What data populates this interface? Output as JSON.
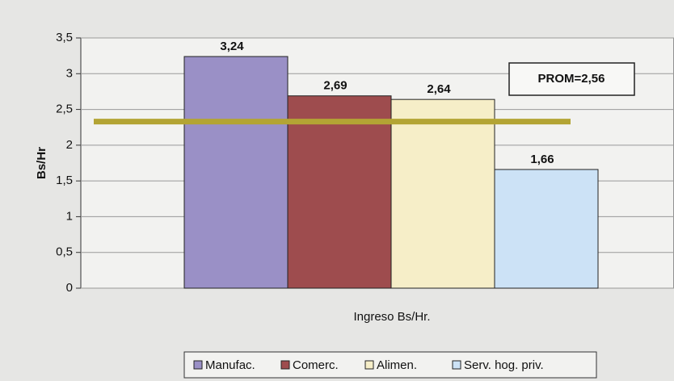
{
  "chart_data": {
    "type": "bar",
    "categories": [
      "Ingreso Bs/Hr."
    ],
    "y_label": "Bs/Hr",
    "series": [
      {
        "name": "Manufac.",
        "color": "#9a90c6",
        "values": [
          3.24
        ],
        "value_labels": [
          "3,24"
        ]
      },
      {
        "name": "Comerc.",
        "color": "#9e4c4e",
        "values": [
          2.69
        ],
        "value_labels": [
          "2,69"
        ]
      },
      {
        "name": "Alimen.",
        "color": "#f6eec8",
        "values": [
          2.64
        ],
        "value_labels": [
          "2,64"
        ]
      },
      {
        "name": "Serv. hog. priv.",
        "color": "#cce2f6",
        "values": [
          1.66
        ],
        "value_labels": [
          "1,66"
        ]
      }
    ],
    "reference_line": {
      "value": 2.33,
      "color": "#b3a434"
    },
    "annotation": "PROM=2,56",
    "ylim": [
      0,
      3.5
    ],
    "yticks": [
      0,
      {
        "value": 0.5,
        "label": "0,5"
      },
      1,
      {
        "value": 1.5,
        "label": "1,5"
      },
      2,
      {
        "value": 2.5,
        "label": "2,5"
      },
      3,
      {
        "value": 3.5,
        "label": "3,5"
      }
    ],
    "grid": true,
    "legend": "bottom"
  }
}
